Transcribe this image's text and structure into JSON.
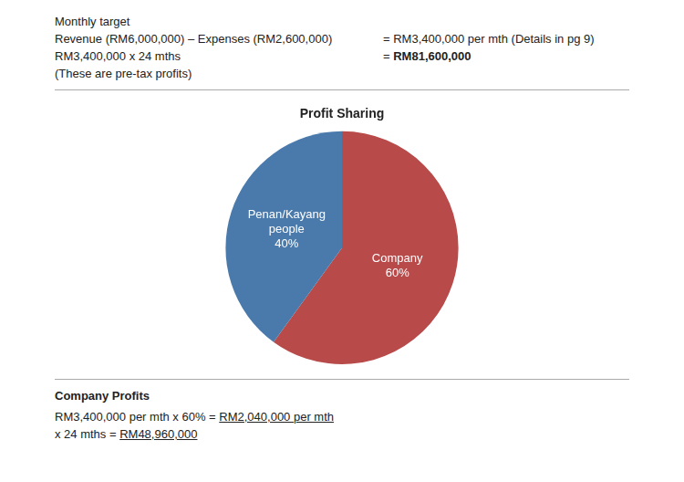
{
  "chart_data": {
    "type": "pie",
    "title": "Profit Sharing",
    "categories": [
      "Company",
      "Penan/Kayang\npeople"
    ],
    "values": [
      60,
      40
    ],
    "value_labels": [
      "60%",
      "40%"
    ],
    "colors": [
      "#b84a4a",
      "#4a7aab"
    ],
    "data_labels": true,
    "legend": false,
    "annotations": [
      "Monthly target",
      "Revenue (RM6,000,000) – Expenses (RM2,600,000)",
      "= RM3,400,000 per mth (Details in pg 9)",
      "RM3,400,000 x 24 mths",
      "= ",
      "RM81,600,000",
      "(These are pre-tax profits)",
      "Company Profits",
      "RM3,400,000 per mth x 60% = ",
      "RM2,040,000 per mth",
      "x 24 mths = ",
      "RM48,960,000"
    ]
  }
}
